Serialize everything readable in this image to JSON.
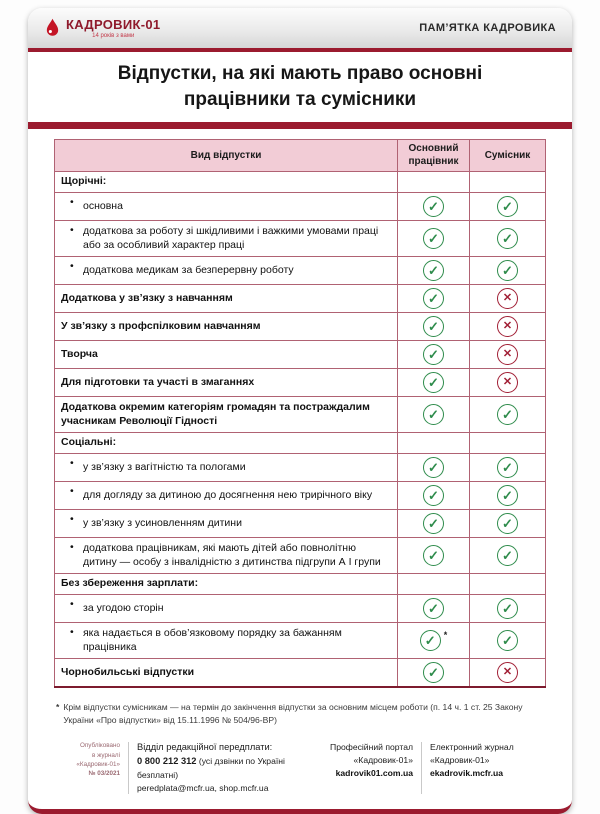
{
  "header": {
    "logo_name": "КАДРОВИК-01",
    "logo_tagline": "14 років з вами",
    "right_label": "ПАМ’ЯТКА КАДРОВИКА"
  },
  "title": "Відпустки, на які мають право основні працівники та сумісники",
  "icons": {
    "check": "✓",
    "cross": "✕",
    "drop": "drop-icon"
  },
  "colors": {
    "accent_red": "#9b1b2f",
    "table_border": "#b06273",
    "header_pink": "#f2ccd6",
    "check_green": "#2f8c4c",
    "cross_red": "#a11f35"
  },
  "table": {
    "columns": [
      "Вид відпустки",
      "Основний працівник",
      "Сумісник"
    ],
    "rows": [
      {
        "label": "Щорічні:",
        "type": "section",
        "main": null,
        "part": null
      },
      {
        "label": "основна",
        "type": "bullet",
        "main": "check",
        "part": "check"
      },
      {
        "label": "додаткова за роботу зі шкідливими і важкими умовами праці або за особливий характер праці",
        "type": "bullet",
        "main": "check",
        "part": "check"
      },
      {
        "label": "додаткова медикам за безперервну роботу",
        "type": "bullet",
        "main": "check",
        "part": "check"
      },
      {
        "label": "Додаткова у зв’язку з навчанням",
        "type": "bold",
        "main": "check",
        "part": "cross"
      },
      {
        "label": "У зв’язку з профспілковим навчанням",
        "type": "bold",
        "main": "check",
        "part": "cross"
      },
      {
        "label": "Творча",
        "type": "bold",
        "main": "check",
        "part": "cross"
      },
      {
        "label": "Для підготовки та участі в змаганнях",
        "type": "bold",
        "main": "check",
        "part": "cross"
      },
      {
        "label": "Додаткова окремим категоріям громадян та постраждалим учасникам Революції Гідності",
        "type": "bold",
        "main": "check",
        "part": "check"
      },
      {
        "label": "Соціальні:",
        "type": "section",
        "main": null,
        "part": null
      },
      {
        "label": "у зв’язку з вагітністю та пологами",
        "type": "bullet",
        "main": "check",
        "part": "check"
      },
      {
        "label": "для догляду за дитиною до досягнення нею трирічного віку",
        "type": "bullet",
        "main": "check",
        "part": "check"
      },
      {
        "label": "у зв’язку з усиновленням дитини",
        "type": "bullet",
        "main": "check",
        "part": "check"
      },
      {
        "label": "додаткова працівникам, які мають дітей або повнолітню дитину — особу з інвалідністю з дитинства підгрупи А І групи",
        "type": "bullet",
        "main": "check",
        "part": "check"
      },
      {
        "label": "Без збереження зарплати:",
        "type": "section",
        "main": null,
        "part": null
      },
      {
        "label": "за угодою сторін",
        "type": "bullet",
        "main": "check",
        "part": "check"
      },
      {
        "label": "яка надається в обов’язковому порядку за бажанням працівника",
        "type": "bullet",
        "main": "check",
        "part": "check",
        "main_note": "*"
      },
      {
        "label": "Чорнобильські відпустки",
        "type": "bold",
        "main": "check",
        "part": "cross"
      }
    ]
  },
  "footnote": {
    "marker": "*",
    "text": "Крім відпустки сумісникам — на термін до закінчення відпустки за основним місцем роботи (п. 14 ч. 1 ст. 25 Закону України «Про відпустки» від 15.11.1996 № 504/96-ВР)"
  },
  "footer": {
    "published": [
      "Опубліковано",
      "в журналі",
      "«Кадровик-01»",
      "№ 03/2021"
    ],
    "subscription_title": "Відділ редакційної передплати:",
    "phone": "0 800 212 312",
    "phone_note": " (усі дзвінки по Україні безплатні)",
    "emails": "peredplata@mcfr.ua, shop.mcfr.ua",
    "portal_label": "Професійний портал «Кадровик-01»",
    "portal_url": "kadrovik01.com.ua",
    "ejournal_label": "Електронний журнал «Кадровик-01»",
    "ejournal_url": "ekadrovik.mcfr.ua"
  }
}
